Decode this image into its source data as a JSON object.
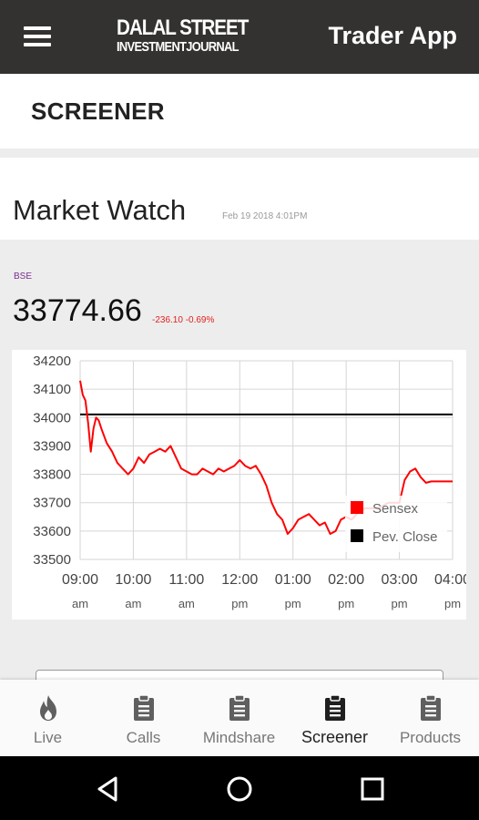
{
  "appbar": {
    "menu_icon": "hamburger-menu-icon",
    "logo_line1": "DALAL STREET",
    "logo_line2": "INVESTMENTJOURNAL",
    "title": "Trader App"
  },
  "screener": {
    "title": "SCREENER"
  },
  "market_watch": {
    "title": "Market Watch",
    "timestamp": "Feb 19 2018 4:01PM"
  },
  "quote": {
    "exchange": "BSE",
    "value": "33774.66",
    "change": "-236.10 -0.69%",
    "change_color": "#e02020",
    "exchange_color": "#7b2d8e"
  },
  "chart_data": {
    "type": "line",
    "title": "",
    "xlabel": "",
    "ylabel": "",
    "ylim": [
      33500,
      34200
    ],
    "yticks": [
      "34200",
      "34100",
      "34000",
      "33900",
      "33800",
      "33700",
      "33600",
      "33500"
    ],
    "xticks": [
      {
        "time": "09:00",
        "period": "am"
      },
      {
        "time": "10:00",
        "period": "am"
      },
      {
        "time": "11:00",
        "period": "am"
      },
      {
        "time": "12:00",
        "period": "pm"
      },
      {
        "time": "01:00",
        "period": "pm"
      },
      {
        "time": "02:00",
        "period": "pm"
      },
      {
        "time": "03:00",
        "period": "pm"
      },
      {
        "time": "04:00",
        "period": "pm"
      }
    ],
    "xlim_hours": [
      9,
      16
    ],
    "grid": true,
    "legend_position": "right",
    "legend": [
      {
        "name": "Sensex",
        "color": "#ff0000"
      },
      {
        "name": "Pev. Close",
        "color": "#000000"
      }
    ],
    "prev_close": 34011,
    "series": [
      {
        "name": "Sensex",
        "color": "#ff0000",
        "x": [
          9.0,
          9.05,
          9.1,
          9.15,
          9.2,
          9.25,
          9.3,
          9.35,
          9.4,
          9.5,
          9.6,
          9.7,
          9.8,
          9.9,
          10.0,
          10.1,
          10.2,
          10.3,
          10.4,
          10.5,
          10.6,
          10.7,
          10.8,
          10.9,
          11.0,
          11.1,
          11.2,
          11.3,
          11.4,
          11.5,
          11.6,
          11.7,
          11.8,
          11.9,
          12.0,
          12.1,
          12.2,
          12.3,
          12.4,
          12.5,
          12.6,
          12.7,
          12.8,
          12.9,
          13.0,
          13.1,
          13.2,
          13.3,
          13.4,
          13.5,
          13.6,
          13.7,
          13.8,
          13.9,
          14.0,
          14.1,
          14.2,
          14.35,
          14.5,
          14.6,
          14.7,
          14.8,
          15.0,
          15.1,
          15.2,
          15.3,
          15.4,
          15.5,
          15.6,
          15.8,
          16.0
        ],
        "y": [
          34130,
          34080,
          34060,
          33980,
          33880,
          33960,
          34000,
          33990,
          33960,
          33910,
          33880,
          33840,
          33820,
          33800,
          33820,
          33860,
          33840,
          33870,
          33880,
          33890,
          33880,
          33900,
          33860,
          33820,
          33810,
          33800,
          33800,
          33820,
          33810,
          33800,
          33820,
          33810,
          33820,
          33830,
          33850,
          33830,
          33820,
          33830,
          33800,
          33760,
          33700,
          33660,
          33640,
          33590,
          33610,
          33640,
          33650,
          33660,
          33640,
          33620,
          33630,
          33590,
          33600,
          33640,
          33650,
          33640,
          33660,
          33680,
          33680,
          33680,
          33690,
          33700,
          33700,
          33780,
          33810,
          33820,
          33790,
          33770,
          33775,
          33775,
          33775
        ]
      }
    ]
  },
  "nav": {
    "items": [
      {
        "label": "Live",
        "icon": "fire-icon"
      },
      {
        "label": "Calls",
        "icon": "clipboard-icon"
      },
      {
        "label": "Mindshare",
        "icon": "clipboard-icon"
      },
      {
        "label": "Screener",
        "icon": "clipboard-icon"
      },
      {
        "label": "Products",
        "icon": "clipboard-icon"
      }
    ],
    "active_index": 3
  },
  "system": {
    "back_icon": "back-triangle-icon",
    "home_icon": "home-circle-icon",
    "recents_icon": "recents-square-icon"
  }
}
